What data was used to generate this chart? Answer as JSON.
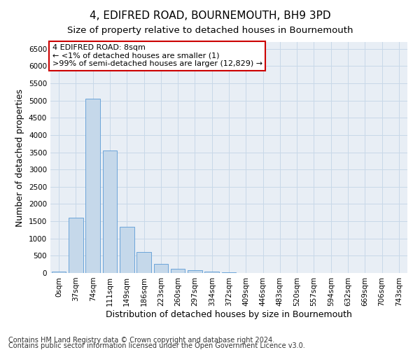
{
  "title": "4, EDIFRED ROAD, BOURNEMOUTH, BH9 3PD",
  "subtitle": "Size of property relative to detached houses in Bournemouth",
  "xlabel": "Distribution of detached houses by size in Bournemouth",
  "ylabel": "Number of detached properties",
  "footnote1": "Contains HM Land Registry data © Crown copyright and database right 2024.",
  "footnote2": "Contains public sector information licensed under the Open Government Licence v3.0.",
  "bar_labels": [
    "0sqm",
    "37sqm",
    "74sqm",
    "111sqm",
    "149sqm",
    "186sqm",
    "223sqm",
    "260sqm",
    "297sqm",
    "334sqm",
    "372sqm",
    "409sqm",
    "446sqm",
    "483sqm",
    "520sqm",
    "557sqm",
    "594sqm",
    "632sqm",
    "669sqm",
    "706sqm",
    "743sqm"
  ],
  "bar_values": [
    50,
    1600,
    5050,
    3550,
    1350,
    600,
    260,
    130,
    90,
    50,
    30,
    5,
    5,
    5,
    5,
    0,
    0,
    0,
    0,
    0,
    0
  ],
  "bar_color": "#c5d8ea",
  "bar_edge_color": "#5b9bd5",
  "annotation_box_color": "#ffffff",
  "annotation_box_edge": "#cc0000",
  "annotation_text": "4 EDIFRED ROAD: 8sqm\n← <1% of detached houses are smaller (1)\n>99% of semi-detached houses are larger (12,829) →",
  "ylim": [
    0,
    6700
  ],
  "yticks": [
    0,
    500,
    1000,
    1500,
    2000,
    2500,
    3000,
    3500,
    4000,
    4500,
    5000,
    5500,
    6000,
    6500
  ],
  "grid_color": "#c8d8e8",
  "bg_color": "#e8eef5",
  "title_fontsize": 11,
  "subtitle_fontsize": 9.5,
  "axis_label_fontsize": 9,
  "tick_fontsize": 7.5,
  "annotation_fontsize": 8,
  "footnote_fontsize": 7
}
